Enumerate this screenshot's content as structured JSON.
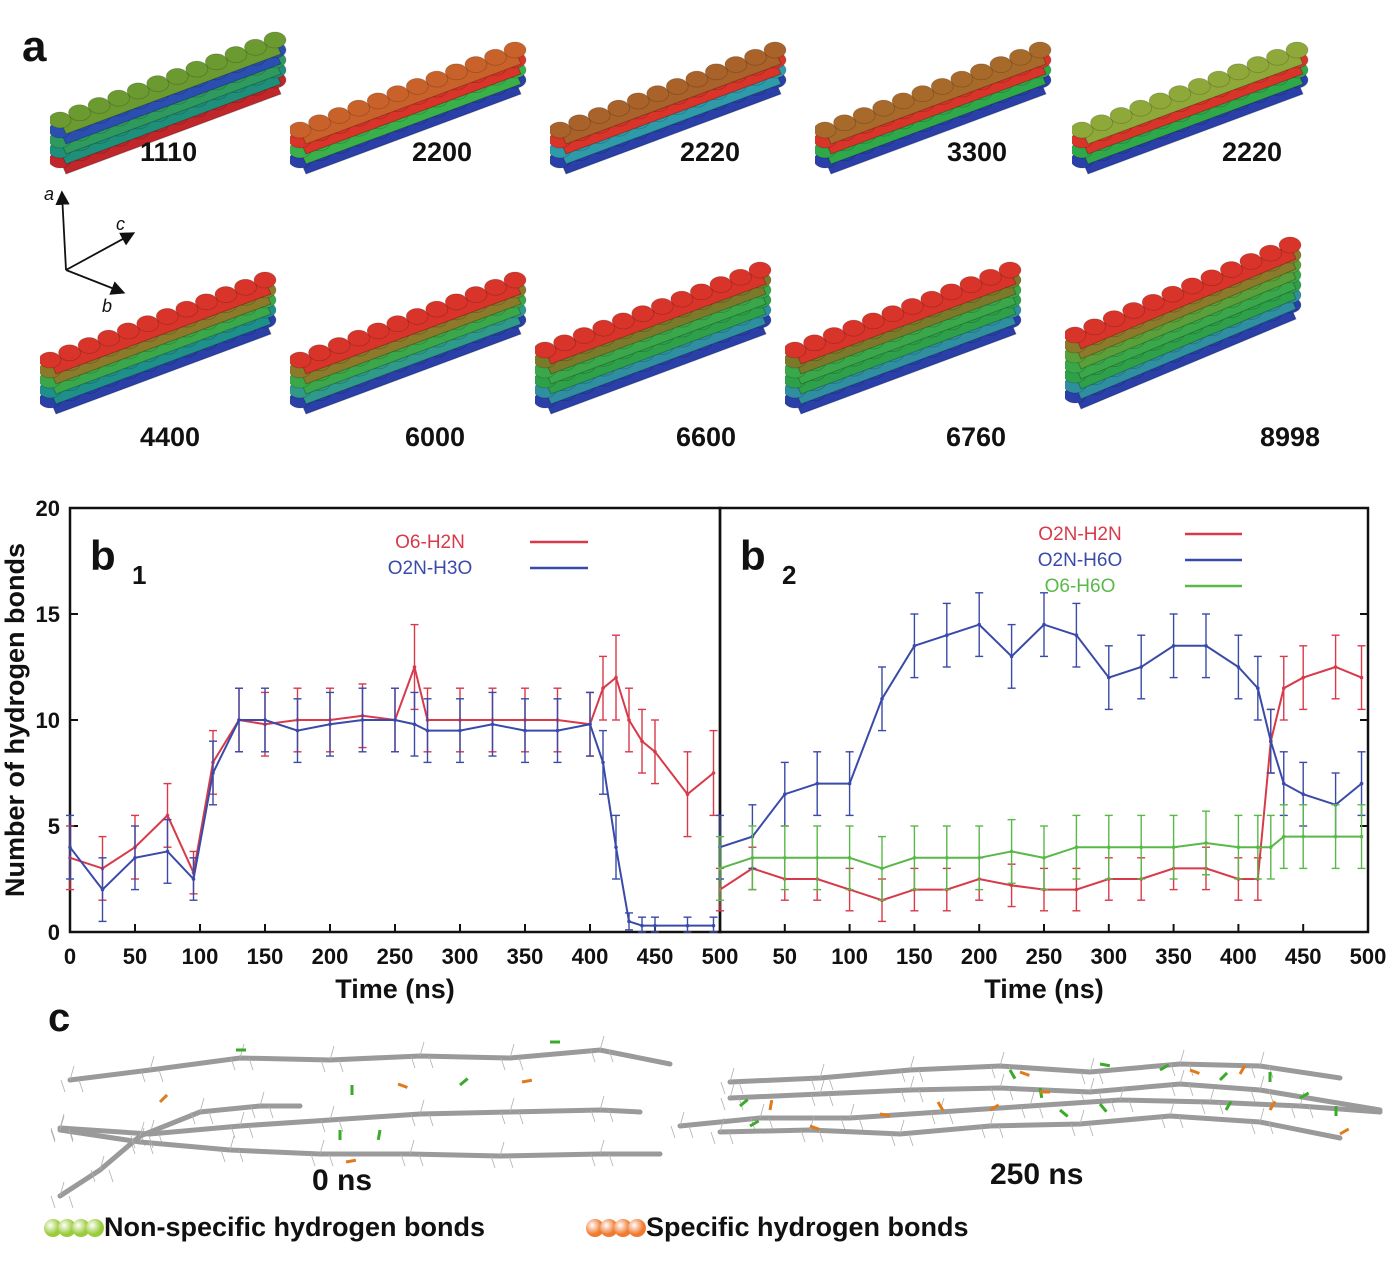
{
  "panel_a": {
    "label": "a",
    "structures": [
      {
        "count": "1110",
        "colors": [
          "#c0262a",
          "#1f8f7a",
          "#2f9a5e",
          "#2a4fb0",
          "#6a9a30"
        ]
      },
      {
        "count": "2200",
        "colors": [
          "#2a3fa8",
          "#3ab04a",
          "#d8342a",
          "#c8622a"
        ]
      },
      {
        "count": "2220",
        "colors": [
          "#2a3fa8",
          "#2f9aa8",
          "#d8342a",
          "#a8622a"
        ]
      },
      {
        "count": "3300",
        "colors": [
          "#2a3fa8",
          "#2fa84a",
          "#d8342a",
          "#a86a2a"
        ]
      },
      {
        "count": "2220",
        "colors": [
          "#2a3fa8",
          "#2fa84a",
          "#d8342a",
          "#8fa83a"
        ]
      },
      {
        "count": "4400",
        "colors": [
          "#2a3fa8",
          "#1f8f8a",
          "#3aa84a",
          "#8a7a2a",
          "#d8342a"
        ]
      },
      {
        "count": "6000",
        "colors": [
          "#2a3fa8",
          "#2f9a8a",
          "#3aa84a",
          "#8a7a2a",
          "#d8342a"
        ]
      },
      {
        "count": "6600",
        "colors": [
          "#2a3fa8",
          "#2f8fa0",
          "#2fa04a",
          "#3aa84a",
          "#7a7a2a",
          "#d8342a"
        ]
      },
      {
        "count": "6760",
        "colors": [
          "#2a3fa8",
          "#2f8fa0",
          "#2fa04a",
          "#3aa84a",
          "#7a7a2a",
          "#d8342a"
        ]
      },
      {
        "count": "8998",
        "colors": [
          "#2a3fa8",
          "#2f8fa0",
          "#2fa04a",
          "#3aa84a",
          "#5aa03a",
          "#8a7a2a",
          "#d8342a"
        ]
      }
    ],
    "axes_triad": {
      "a": "a",
      "b": "b",
      "c": "c"
    }
  },
  "chart_data": [
    {
      "type": "line",
      "panel_label": "b",
      "panel_sub": "1",
      "xlabel": "Time (ns)",
      "ylabel": "Number of hydrogen bonds",
      "xlim": [
        0,
        500
      ],
      "ylim": [
        0,
        20
      ],
      "xticks": [
        "0",
        "50",
        "100",
        "150",
        "200",
        "250",
        "300",
        "350",
        "400",
        "450",
        "500"
      ],
      "yticks": [
        "0",
        "5",
        "10",
        "15",
        "20"
      ],
      "x": [
        0,
        25,
        50,
        75,
        95,
        110,
        130,
        150,
        175,
        200,
        225,
        250,
        265,
        275,
        300,
        325,
        350,
        375,
        400,
        410,
        420,
        430,
        440,
        450,
        475,
        495
      ],
      "series": [
        {
          "name": "O6-H2N",
          "color": "#d83a4a",
          "values": [
            3.5,
            3.0,
            4.0,
            5.5,
            2.8,
            8.0,
            10.0,
            9.8,
            10.0,
            10.0,
            10.2,
            10.0,
            12.5,
            10.0,
            10.0,
            10.0,
            10.0,
            10.0,
            9.8,
            11.5,
            12.0,
            10.0,
            9.0,
            8.5,
            6.5,
            7.5
          ],
          "errors": [
            1.5,
            1.5,
            1.5,
            1.5,
            1.0,
            1.5,
            1.5,
            1.5,
            1.5,
            1.5,
            1.5,
            1.5,
            2.0,
            1.5,
            1.5,
            1.5,
            1.5,
            1.5,
            1.5,
            1.5,
            2.0,
            1.5,
            1.5,
            1.5,
            2.0,
            2.0
          ]
        },
        {
          "name": "O2N-H3O",
          "color": "#3a4aa8",
          "values": [
            4.0,
            2.0,
            3.5,
            3.8,
            2.5,
            7.5,
            10.0,
            10.0,
            9.5,
            9.8,
            10.0,
            10.0,
            9.8,
            9.5,
            9.5,
            9.8,
            9.5,
            9.5,
            9.8,
            8.0,
            4.0,
            0.5,
            0.3,
            0.3,
            0.3,
            0.3
          ],
          "errors": [
            1.5,
            1.5,
            1.5,
            1.5,
            1.0,
            1.5,
            1.5,
            1.5,
            1.5,
            1.5,
            1.5,
            1.5,
            1.5,
            1.5,
            1.5,
            1.5,
            1.5,
            1.5,
            1.5,
            1.5,
            1.5,
            0.4,
            0.4,
            0.4,
            0.4,
            0.4
          ]
        }
      ]
    },
    {
      "type": "line",
      "panel_label": "b",
      "panel_sub": "2",
      "xlabel": "Time (ns)",
      "ylabel": "",
      "xlim": [
        0,
        500
      ],
      "ylim": [
        0,
        20
      ],
      "xticks": [
        "0",
        "50",
        "100",
        "150",
        "200",
        "250",
        "300",
        "350",
        "400",
        "450",
        "500"
      ],
      "x": [
        0,
        25,
        50,
        75,
        100,
        125,
        150,
        175,
        200,
        225,
        250,
        275,
        300,
        325,
        350,
        375,
        400,
        415,
        425,
        435,
        450,
        475,
        495
      ],
      "series": [
        {
          "name": "O2N-H2N",
          "color": "#d83a4a",
          "values": [
            2.0,
            3.0,
            2.5,
            2.5,
            2.0,
            1.5,
            2.0,
            2.0,
            2.5,
            2.2,
            2.0,
            2.0,
            2.5,
            2.5,
            3.0,
            3.0,
            2.5,
            2.5,
            9.0,
            11.5,
            12.0,
            12.5,
            12.0
          ],
          "errors": [
            1.0,
            1.0,
            1.0,
            1.0,
            1.0,
            1.0,
            1.0,
            1.0,
            1.0,
            1.0,
            1.0,
            1.0,
            1.0,
            1.0,
            1.0,
            1.0,
            1.0,
            1.0,
            1.5,
            1.5,
            1.5,
            1.5,
            1.5
          ]
        },
        {
          "name": "O2N-H6O",
          "color": "#3a4aa8",
          "values": [
            4.0,
            4.5,
            6.5,
            7.0,
            7.0,
            11.0,
            13.5,
            14.0,
            14.5,
            13.0,
            14.5,
            14.0,
            12.0,
            12.5,
            13.5,
            13.5,
            12.5,
            11.5,
            9.0,
            7.0,
            6.5,
            6.0,
            7.0
          ],
          "errors": [
            1.5,
            1.5,
            1.5,
            1.5,
            1.5,
            1.5,
            1.5,
            1.5,
            1.5,
            1.5,
            1.5,
            1.5,
            1.5,
            1.5,
            1.5,
            1.5,
            1.5,
            1.5,
            1.5,
            1.5,
            1.5,
            1.5,
            1.5
          ]
        },
        {
          "name": "O6-H6O",
          "color": "#5ab84a",
          "values": [
            3.0,
            3.5,
            3.5,
            3.5,
            3.5,
            3.0,
            3.5,
            3.5,
            3.5,
            3.8,
            3.5,
            4.0,
            4.0,
            4.0,
            4.0,
            4.2,
            4.0,
            4.0,
            4.0,
            4.5,
            4.5,
            4.5,
            4.5
          ],
          "errors": [
            1.5,
            1.5,
            1.5,
            1.5,
            1.5,
            1.5,
            1.5,
            1.5,
            1.5,
            1.5,
            1.5,
            1.5,
            1.5,
            1.5,
            1.5,
            1.5,
            1.5,
            1.5,
            1.5,
            1.5,
            1.5,
            1.5,
            1.5
          ]
        }
      ]
    }
  ],
  "panel_c": {
    "label": "c",
    "time_left": "0 ns",
    "time_right": "250 ns",
    "legend": [
      {
        "text": "Non-specific hydrogen bonds",
        "color": "#9acb3a"
      },
      {
        "text": "Specific hydrogen bonds",
        "color": "#f07a30"
      }
    ],
    "backbone_color": "#9a9a9a",
    "nonspecific_color": "#3aaa2a",
    "specific_color": "#e07a1a"
  }
}
